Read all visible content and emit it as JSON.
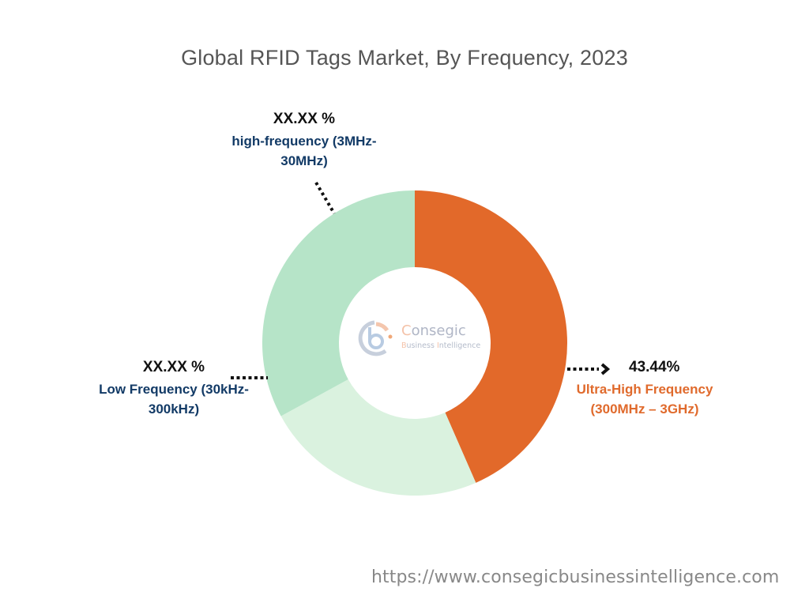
{
  "title": "Global RFID Tags Market, By Frequency, 2023",
  "footer": {
    "url": "https://www.consegicbusinessintelligence.com"
  },
  "watermark": {
    "line1_first": "C",
    "line1_rest": "onsegic",
    "line2_a": "B",
    "line2_b": "usiness ",
    "line2_c": "I",
    "line2_d": "ntelligence"
  },
  "labels": {
    "high_frequency": {
      "value": "XX.XX %",
      "name_line1": "high-frequency (3MHz-",
      "name_line2": "30MHz)"
    },
    "low_frequency": {
      "value": "XX.XX %",
      "name_line1": "Low Frequency (30kHz-",
      "name_line2": "300kHz)"
    },
    "ultra_high_frequency": {
      "value": "43.44%",
      "name_line1": "Ultra-High Frequency",
      "name_line2": "(300MHz – 3GHz)"
    }
  },
  "colors": {
    "ultra_high_frequency": "#e2692a",
    "low_frequency": "#daf2df",
    "high_frequency": "#b6e4c8",
    "label_navy": "#123a66",
    "label_orange": "#e06a2c"
  },
  "chart_data": {
    "type": "pie",
    "subtype": "donut",
    "title": "Global RFID Tags Market, By Frequency, 2023",
    "categories": [
      "Ultra-High Frequency (300MHz – 3GHz)",
      "Low Frequency (30kHz-300kHz)",
      "high-frequency (3MHz-30MHz)"
    ],
    "values": [
      43.44,
      23.6,
      32.96
    ],
    "displayed_labels": [
      "43.44%",
      "XX.XX %",
      "XX.XX %"
    ],
    "colors": [
      "#e2692a",
      "#daf2df",
      "#b6e4c8"
    ],
    "start_angle_deg": 0,
    "direction": "clockwise",
    "legend": "none (callout labels)",
    "center": [
      525,
      434
    ],
    "outer_radius": 193,
    "inner_radius": 96
  }
}
